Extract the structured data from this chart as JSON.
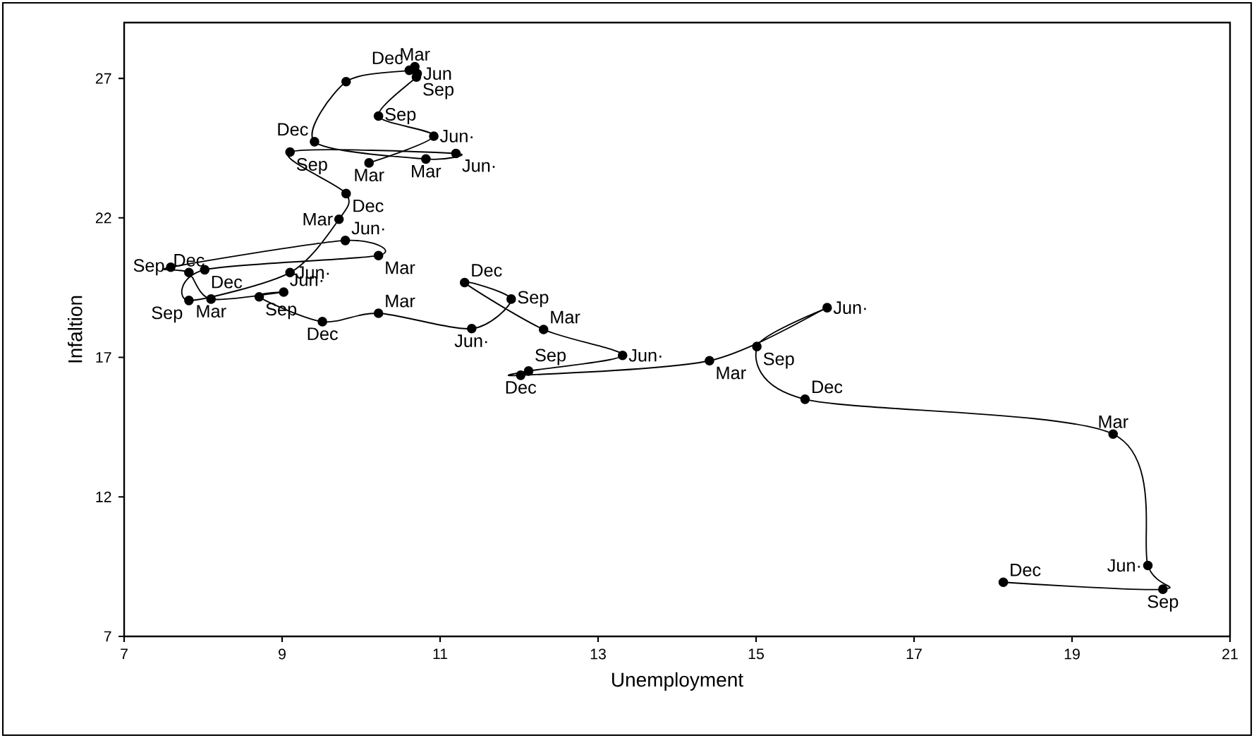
{
  "chart_data": {
    "type": "line",
    "xlabel": "Unemployment",
    "ylabel": "Infaltion",
    "x": [
      10.1,
      10.92,
      10.22,
      10.7,
      10.71,
      10.68,
      10.61,
      9.81,
      9.41,
      10.82,
      11.2,
      9.1,
      9.81,
      9.72,
      9.1,
      7.82,
      8.02,
      10.22,
      9.8,
      7.59,
      7.82,
      8.1,
      9.02,
      8.71,
      9.51,
      10.22,
      11.4,
      11.9,
      11.31,
      12.31,
      13.31,
      12.12,
      12.02,
      14.41,
      15.9,
      15.01,
      15.62,
      19.52,
      19.96,
      20.15,
      18.13
    ],
    "values": [
      23.97,
      24.93,
      25.65,
      27.05,
      27.17,
      27.42,
      27.29,
      26.88,
      24.73,
      24.11,
      24.31,
      24.36,
      22.87,
      21.95,
      20.04,
      19.04,
      20.14,
      20.65,
      21.19,
      20.23,
      20.04,
      19.09,
      19.34,
      19.17,
      18.28,
      18.58,
      18.03,
      19.09,
      19.68,
      18.0,
      17.07,
      16.51,
      16.36,
      16.88,
      18.78,
      17.39,
      15.5,
      14.25,
      9.54,
      8.69,
      8.94
    ],
    "color": "#000000",
    "marker": "circle",
    "line_style": "solid",
    "xlim": [
      7,
      21
    ],
    "ylim": [
      7,
      29
    ],
    "xticks": [
      7,
      9,
      11,
      13,
      15,
      17,
      19,
      21
    ],
    "yticks": [
      7,
      12,
      17,
      22,
      27
    ],
    "annotations": [
      {
        "text": "Mar",
        "x": 10.1,
        "y": 23.97
      },
      {
        "text": "Jun·",
        "x": 10.92,
        "y": 24.93
      },
      {
        "text": "Sep",
        "x": 10.22,
        "y": 25.65
      },
      {
        "text": "Sep",
        "x": 10.7,
        "y": 27.05
      },
      {
        "text": "Jun",
        "x": 10.71,
        "y": 27.17
      },
      {
        "text": "Mar",
        "x": 10.68,
        "y": 27.42
      },
      {
        "text": "Dec",
        "x": 10.61,
        "y": 27.29
      },
      {
        "text": "Dec",
        "x": 9.41,
        "y": 24.73
      },
      {
        "text": "Mar",
        "x": 10.82,
        "y": 24.11
      },
      {
        "text": "Jun·",
        "x": 11.2,
        "y": 24.31
      },
      {
        "text": "Sep",
        "x": 9.1,
        "y": 24.36
      },
      {
        "text": "Dec",
        "x": 9.81,
        "y": 22.87
      },
      {
        "text": "Mar",
        "x": 9.72,
        "y": 21.95
      },
      {
        "text": "Jun·",
        "x": 9.1,
        "y": 20.04
      },
      {
        "text": "Sep",
        "x": 7.82,
        "y": 19.04
      },
      {
        "text": "Dec",
        "x": 8.02,
        "y": 20.14
      },
      {
        "text": "Mar",
        "x": 10.22,
        "y": 20.65
      },
      {
        "text": "Jun·",
        "x": 9.8,
        "y": 21.19
      },
      {
        "text": "Sep",
        "x": 7.59,
        "y": 20.23
      },
      {
        "text": "Dec",
        "x": 7.82,
        "y": 20.04
      },
      {
        "text": "Mar",
        "x": 8.1,
        "y": 19.09
      },
      {
        "text": "Jun·",
        "x": 9.02,
        "y": 19.34
      },
      {
        "text": "Sep",
        "x": 8.71,
        "y": 19.17
      },
      {
        "text": "Dec",
        "x": 9.51,
        "y": 18.28
      },
      {
        "text": "Mar",
        "x": 10.22,
        "y": 18.58
      },
      {
        "text": "Jun·",
        "x": 11.4,
        "y": 18.03
      },
      {
        "text": "Sep",
        "x": 11.9,
        "y": 19.09
      },
      {
        "text": "Dec",
        "x": 11.31,
        "y": 19.68
      },
      {
        "text": "Mar",
        "x": 12.31,
        "y": 18.0
      },
      {
        "text": "Jun·",
        "x": 13.31,
        "y": 17.07
      },
      {
        "text": "Sep",
        "x": 12.12,
        "y": 16.51
      },
      {
        "text": "Dec",
        "x": 12.02,
        "y": 16.36
      },
      {
        "text": "Mar",
        "x": 14.41,
        "y": 16.88
      },
      {
        "text": "Jun·",
        "x": 15.9,
        "y": 18.78
      },
      {
        "text": "Sep",
        "x": 15.01,
        "y": 17.39
      },
      {
        "text": "Dec",
        "x": 15.62,
        "y": 15.5
      },
      {
        "text": "Mar",
        "x": 19.52,
        "y": 14.25
      },
      {
        "text": "Jun·",
        "x": 19.96,
        "y": 9.54
      },
      {
        "text": "Sep",
        "x": 20.15,
        "y": 8.69
      },
      {
        "text": "Dec",
        "x": 18.13,
        "y": 8.94
      }
    ]
  }
}
